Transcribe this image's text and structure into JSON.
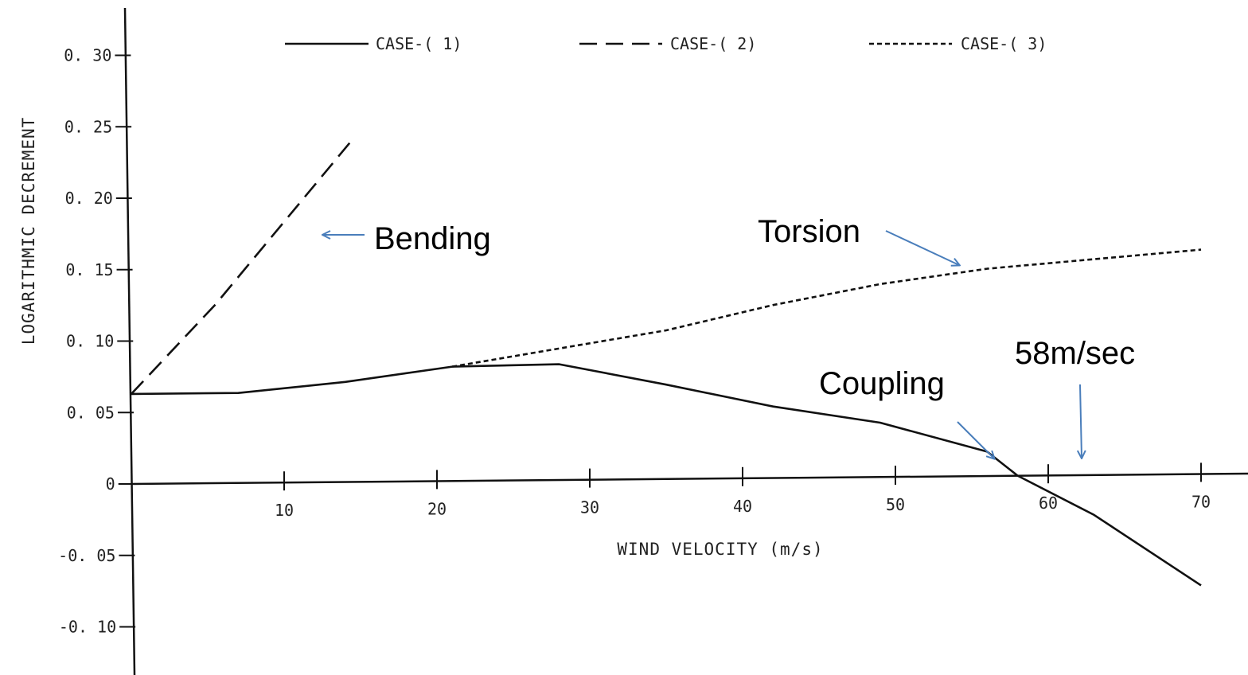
{
  "chart_data": {
    "type": "line",
    "xlabel": "WIND VELOCITY (m/s)",
    "ylabel": "LOGARITHMIC DECREMENT",
    "xlim": [
      0,
      72
    ],
    "ylim": [
      -0.13,
      0.33
    ],
    "x_ticks": [
      {
        "value": 10,
        "label": "10"
      },
      {
        "value": 20,
        "label": "20"
      },
      {
        "value": 30,
        "label": "30"
      },
      {
        "value": 40,
        "label": "40"
      },
      {
        "value": 50,
        "label": "50"
      },
      {
        "value": 60,
        "label": "60"
      },
      {
        "value": 70,
        "label": "70"
      }
    ],
    "y_ticks": [
      {
        "value": 0.3,
        "label": "0. 30"
      },
      {
        "value": 0.25,
        "label": "0. 25"
      },
      {
        "value": 0.2,
        "label": "0. 20"
      },
      {
        "value": 0.15,
        "label": "0. 15"
      },
      {
        "value": 0.1,
        "label": "0. 10"
      },
      {
        "value": 0.05,
        "label": "0. 05"
      },
      {
        "value": 0.0,
        "label": "0"
      },
      {
        "value": -0.05,
        "label": "-0. 05"
      },
      {
        "value": -0.1,
        "label": "-0. 10"
      }
    ],
    "grid": false,
    "legend_position": "top",
    "series": [
      {
        "name": "CASE-( 1)",
        "style": "solid",
        "color": "#111111",
        "points": [
          [
            0,
            0.063
          ],
          [
            7,
            0.063
          ],
          [
            14,
            0.07
          ],
          [
            21,
            0.08
          ],
          [
            28,
            0.081
          ],
          [
            35,
            0.066
          ],
          [
            42,
            0.05
          ],
          [
            49,
            0.038
          ],
          [
            56,
            0.017
          ],
          [
            58,
            0.0
          ],
          [
            63,
            -0.028
          ],
          [
            70,
            -0.078
          ]
        ]
      },
      {
        "name": "CASE-( 2)",
        "style": "dashed",
        "color": "#111111",
        "points": [
          [
            0,
            0.063
          ],
          [
            5.5,
            0.125
          ],
          [
            14.5,
            0.24
          ]
        ]
      },
      {
        "name": "CASE-( 3)",
        "style": "dotted",
        "color": "#111111",
        "points": [
          [
            21,
            0.08
          ],
          [
            28,
            0.092
          ],
          [
            35,
            0.104
          ],
          [
            42,
            0.121
          ],
          [
            49,
            0.135
          ],
          [
            56,
            0.145
          ],
          [
            63,
            0.151
          ],
          [
            70,
            0.157
          ]
        ]
      }
    ],
    "annotations": [
      {
        "id": "bending",
        "text": "Bending",
        "arrow_color": "#4a7ebb"
      },
      {
        "id": "torsion",
        "text": "Torsion",
        "arrow_color": "#4a7ebb"
      },
      {
        "id": "coupling",
        "text": "Coupling",
        "arrow_color": "#4a7ebb"
      },
      {
        "id": "speed",
        "text": "58m/sec",
        "arrow_color": "#4a7ebb"
      }
    ]
  }
}
